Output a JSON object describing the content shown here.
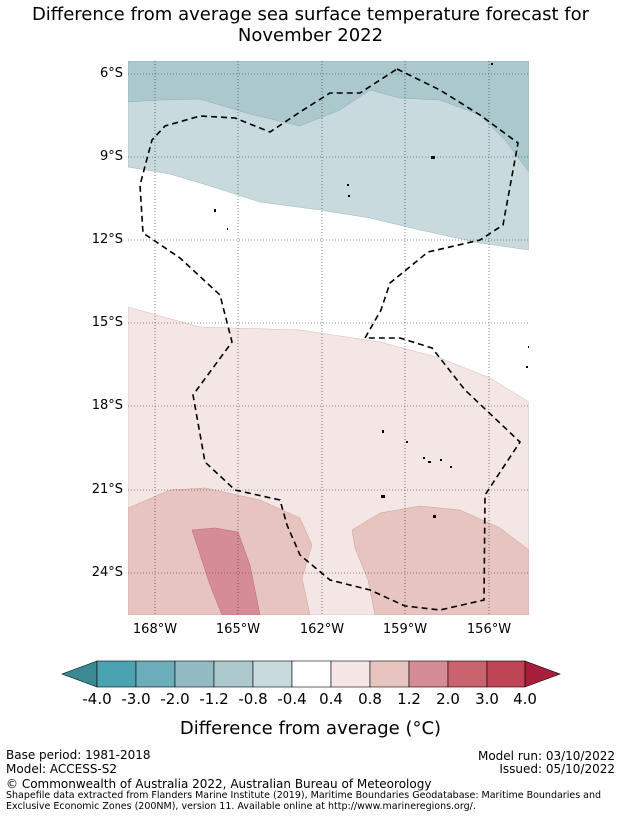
{
  "title": {
    "line1": "Difference from average sea surface temperature forecast for",
    "line2": "November 2022"
  },
  "map": {
    "lat_labels": [
      "6°S",
      "9°S",
      "12°S",
      "15°S",
      "18°S",
      "21°S",
      "24°S"
    ],
    "lon_labels": [
      "168°W",
      "165°W",
      "162°W",
      "159°W",
      "156°W"
    ]
  },
  "colorbar": {
    "ticks": [
      "-4.0",
      "-3.0",
      "-2.0",
      "-1.2",
      "-0.8",
      "-0.4",
      "0.4",
      "0.8",
      "1.2",
      "2.0",
      "3.0",
      "4.0"
    ],
    "colors": [
      "#3a8a94",
      "#4ba3b1",
      "#6cadbb",
      "#91bac2",
      "#abc9cd",
      "#c8dadd",
      "#ffffff",
      "#f4e6e4",
      "#e7c4c0",
      "#d68c95",
      "#c9646f",
      "#bf4556",
      "#a81e3c"
    ],
    "title": "Difference from average (°C)"
  },
  "footer": {
    "base_period": "Base period: 1981-2018",
    "model": "Model: ACCESS-S2",
    "model_run": "Model run: 03/10/2022",
    "issued": "Issued: 05/10/2022",
    "copyright": "© Commonwealth of Australia 2022, Australian Bureau of Meteorology",
    "shapefile_1": "Shapefile data extracted from Flanders Marine Institute (2019), Maritime Boundaries Geodatabase: Maritime Boundaries and",
    "shapefile_2": "Exclusive Economic Zones (200NM), version 11. Available online at http://www.marineregions.org/."
  }
}
